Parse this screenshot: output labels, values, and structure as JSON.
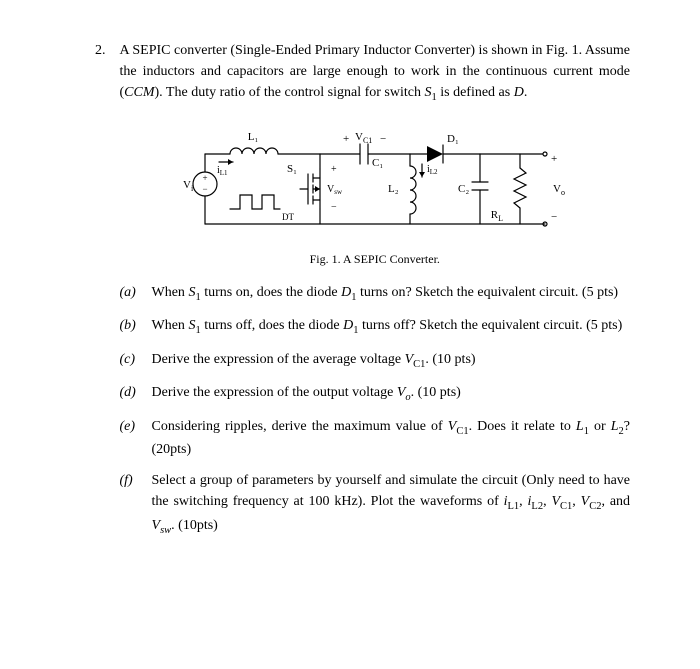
{
  "problem": {
    "number": "2.",
    "intro_html": "A SEPIC converter (Single-Ended Primary Inductor Converter) is shown in Fig. 1. Assume the inductors and capacitors are large enough to work in the continuous current mode (<span class='ital'>CCM</span>). The duty ratio of the control signal for switch <span class='ital'>S</span><sub>1</sub> is defined as <span class='ital'>D</span>."
  },
  "figure": {
    "caption": "Fig. 1. A SEPIC Converter.",
    "labels": {
      "L1": "L₁",
      "VC1_plus": "+",
      "VC1": "V",
      "VC1_sub": "C1",
      "VC1_minus": "−",
      "D1": "D₁",
      "iL1": "i",
      "iL1_sub": "L1",
      "Vi": "V",
      "Vi_sub": "i",
      "S1": "S₁",
      "Vsw_plus": "+",
      "Vsw": "V",
      "Vsw_sub": "sw",
      "Vsw_minus": "−",
      "C1": "C₁",
      "L2": "L₂",
      "iL2": "i",
      "iL2_sub": "L2",
      "C2": "C₂",
      "RL": "R",
      "RL_sub": "L",
      "Vo": "V",
      "Vo_sub": "o",
      "Vo_plus": "+",
      "Vo_minus": "−",
      "DT": "DT"
    },
    "style": {
      "stroke": "#000000",
      "stroke_width": 1.2,
      "font_family": "Times New Roman",
      "label_fontsize": 11,
      "sub_fontsize": 8
    }
  },
  "parts": [
    {
      "label": "(a)",
      "text_html": "When <span class='ital'>S</span><sub>1</sub> turns on, does the diode <span class='ital'>D</span><sub>1</sub> turns on? Sketch the equivalent circuit. (5 pts)"
    },
    {
      "label": "(b)",
      "text_html": "When <span class='ital'>S</span><sub>1</sub> turns off, does the diode <span class='ital'>D</span><sub>1</sub> turns off? Sketch the equivalent circuit. (5 pts)"
    },
    {
      "label": "(c)",
      "text_html": "Derive the expression of the average voltage <span class='ital'>V</span><sub>C1</sub>. (10 pts)"
    },
    {
      "label": "(d)",
      "text_html": "Derive the expression of the output voltage <span class='ital'>V<sub>o</sub></span>. (10 pts)"
    },
    {
      "label": "(e)",
      "text_html": "Considering ripples, derive the maximum value of <span class='ital'>V</span><sub>C1</sub>. Does it relate to <span class='ital'>L</span><sub>1</sub> or <span class='ital'>L</span><sub>2</sub>? (20pts)"
    },
    {
      "label": "(f)",
      "text_html": "Select a group of parameters by yourself and simulate the circuit (Only need to have the switching frequency at 100 kHz). Plot the waveforms of <span class='ital'>i</span><sub>L1</sub>, <span class='ital'>i</span><sub>L2</sub>, <span class='ital'>V</span><sub>C1</sub>, <span class='ital'>V</span><sub>C2</sub>, and <span class='ital'>V<sub>sw</sub></span>. (10pts)"
    }
  ]
}
